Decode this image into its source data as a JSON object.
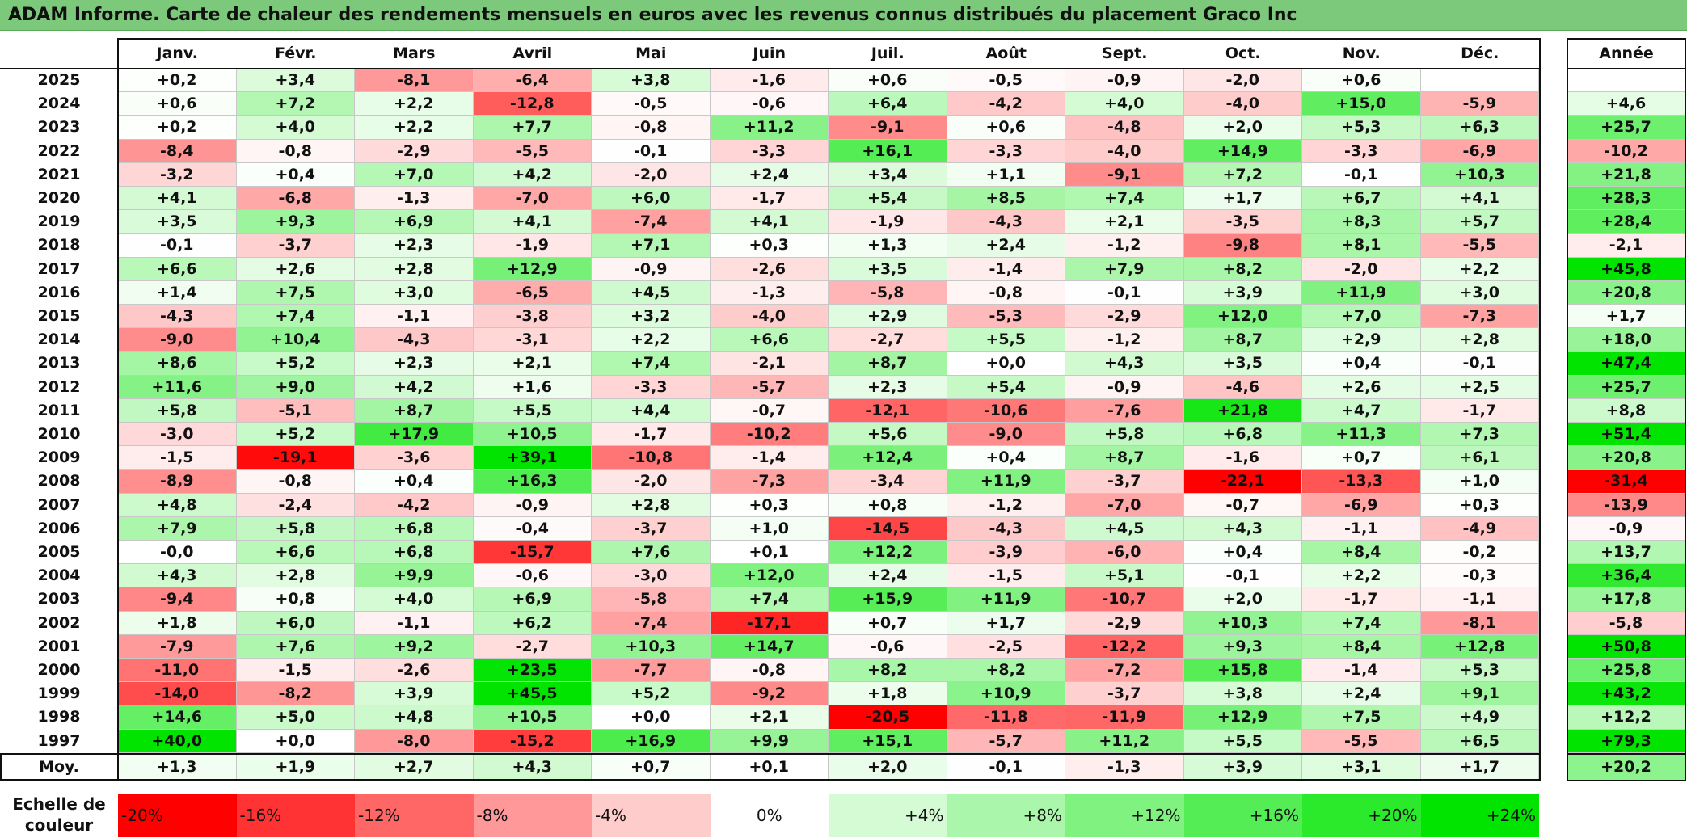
{
  "title": "ADAM Informe. Carte de chaleur des rendements mensuels en euros avec les revenus connus distribués du placement Graco Inc",
  "months": [
    "Janv.",
    "Févr.",
    "Mars",
    "Avril",
    "Mai",
    "Juin",
    "Juil.",
    "Août",
    "Sept.",
    "Oct.",
    "Nov.",
    "Déc."
  ],
  "year_header": "Année",
  "avg_label": "Moy.",
  "scale_label_line1": "Echelle de",
  "scale_label_line2": "couleur",
  "colors": {
    "neutral": "#ffffff",
    "positive_max": "#00e400",
    "negative_max": "#ff0000",
    "title_bg": "#7dc97b"
  },
  "chart_data": {
    "type": "heatmap",
    "title": "ADAM Informe. Carte de chaleur des rendements mensuels en euros avec les revenus connus distribués du placement Graco Inc",
    "color_scale_range": [
      -20,
      24
    ],
    "rows": [
      {
        "year": "2025",
        "values": [
          "+0,2",
          "+3,4",
          "-8,1",
          "-6,4",
          "+3,8",
          "-1,6",
          "+0,6",
          "-0,5",
          "-0,9",
          "-2,0",
          "+0,6",
          ""
        ],
        "annual": ""
      },
      {
        "year": "2024",
        "values": [
          "+0,6",
          "+7,2",
          "+2,2",
          "-12,8",
          "-0,5",
          "-0,6",
          "+6,4",
          "-4,2",
          "+4,0",
          "-4,0",
          "+15,0",
          "-5,9"
        ],
        "annual": "+4,6"
      },
      {
        "year": "2023",
        "values": [
          "+0,2",
          "+4,0",
          "+2,2",
          "+7,7",
          "-0,8",
          "+11,2",
          "-9,1",
          "+0,6",
          "-4,8",
          "+2,0",
          "+5,3",
          "+6,3"
        ],
        "annual": "+25,7"
      },
      {
        "year": "2022",
        "values": [
          "-8,4",
          "-0,8",
          "-2,9",
          "-5,5",
          "-0,1",
          "-3,3",
          "+16,1",
          "-3,3",
          "-4,0",
          "+14,9",
          "-3,3",
          "-6,9"
        ],
        "annual": "-10,2"
      },
      {
        "year": "2021",
        "values": [
          "-3,2",
          "+0,4",
          "+7,0",
          "+4,2",
          "-2,0",
          "+2,4",
          "+3,4",
          "+1,1",
          "-9,1",
          "+7,2",
          "-0,1",
          "+10,3"
        ],
        "annual": "+21,8"
      },
      {
        "year": "2020",
        "values": [
          "+4,1",
          "-6,8",
          "-1,3",
          "-7,0",
          "+6,0",
          "-1,7",
          "+5,4",
          "+8,5",
          "+7,4",
          "+1,7",
          "+6,7",
          "+4,1"
        ],
        "annual": "+28,3"
      },
      {
        "year": "2019",
        "values": [
          "+3,5",
          "+9,3",
          "+6,9",
          "+4,1",
          "-7,4",
          "+4,1",
          "-1,9",
          "-4,3",
          "+2,1",
          "-3,5",
          "+8,3",
          "+5,7"
        ],
        "annual": "+28,4"
      },
      {
        "year": "2018",
        "values": [
          "-0,1",
          "-3,7",
          "+2,3",
          "-1,9",
          "+7,1",
          "+0,3",
          "+1,3",
          "+2,4",
          "-1,2",
          "-9,8",
          "+8,1",
          "-5,5"
        ],
        "annual": "-2,1"
      },
      {
        "year": "2017",
        "values": [
          "+6,6",
          "+2,6",
          "+2,8",
          "+12,9",
          "-0,9",
          "-2,6",
          "+3,5",
          "-1,4",
          "+7,9",
          "+8,2",
          "-2,0",
          "+2,2"
        ],
        "annual": "+45,8"
      },
      {
        "year": "2016",
        "values": [
          "+1,4",
          "+7,5",
          "+3,0",
          "-6,5",
          "+4,5",
          "-1,3",
          "-5,8",
          "-0,8",
          "-0,1",
          "+3,9",
          "+11,9",
          "+3,0"
        ],
        "annual": "+20,8"
      },
      {
        "year": "2015",
        "values": [
          "-4,3",
          "+7,4",
          "-1,1",
          "-3,8",
          "+3,2",
          "-4,0",
          "+2,9",
          "-5,3",
          "-2,9",
          "+12,0",
          "+7,0",
          "-7,3"
        ],
        "annual": "+1,7"
      },
      {
        "year": "2014",
        "values": [
          "-9,0",
          "+10,4",
          "-4,3",
          "-3,1",
          "+2,2",
          "+6,6",
          "-2,7",
          "+5,5",
          "-1,2",
          "+8,7",
          "+2,9",
          "+2,8"
        ],
        "annual": "+18,0"
      },
      {
        "year": "2013",
        "values": [
          "+8,6",
          "+5,2",
          "+2,3",
          "+2,1",
          "+7,4",
          "-2,1",
          "+8,7",
          "+0,0",
          "+4,3",
          "+3,5",
          "+0,4",
          "-0,1"
        ],
        "annual": "+47,4"
      },
      {
        "year": "2012",
        "values": [
          "+11,6",
          "+9,0",
          "+4,2",
          "+1,6",
          "-3,3",
          "-5,7",
          "+2,3",
          "+5,4",
          "-0,9",
          "-4,6",
          "+2,6",
          "+2,5"
        ],
        "annual": "+25,7"
      },
      {
        "year": "2011",
        "values": [
          "+5,8",
          "-5,1",
          "+8,7",
          "+5,5",
          "+4,4",
          "-0,7",
          "-12,1",
          "-10,6",
          "-7,6",
          "+21,8",
          "+4,7",
          "-1,7"
        ],
        "annual": "+8,8"
      },
      {
        "year": "2010",
        "values": [
          "-3,0",
          "+5,2",
          "+17,9",
          "+10,5",
          "-1,7",
          "-10,2",
          "+5,6",
          "-9,0",
          "+5,8",
          "+6,8",
          "+11,3",
          "+7,3"
        ],
        "annual": "+51,4"
      },
      {
        "year": "2009",
        "values": [
          "-1,5",
          "-19,1",
          "-3,6",
          "+39,1",
          "-10,8",
          "-1,4",
          "+12,4",
          "+0,4",
          "+8,7",
          "-1,6",
          "+0,7",
          "+6,1"
        ],
        "annual": "+20,8"
      },
      {
        "year": "2008",
        "values": [
          "-8,9",
          "-0,8",
          "+0,4",
          "+16,3",
          "-2,0",
          "-7,3",
          "-3,4",
          "+11,9",
          "-3,7",
          "-22,1",
          "-13,3",
          "+1,0"
        ],
        "annual": "-31,4"
      },
      {
        "year": "2007",
        "values": [
          "+4,8",
          "-2,4",
          "-4,2",
          "-0,9",
          "+2,8",
          "+0,3",
          "+0,8",
          "-1,2",
          "-7,0",
          "-0,7",
          "-6,9",
          "+0,3"
        ],
        "annual": "-13,9"
      },
      {
        "year": "2006",
        "values": [
          "+7,9",
          "+5,8",
          "+6,8",
          "-0,4",
          "-3,7",
          "+1,0",
          "-14,5",
          "-4,3",
          "+4,5",
          "+4,3",
          "-1,1",
          "-4,9"
        ],
        "annual": "-0,9"
      },
      {
        "year": "2005",
        "values": [
          "-0,0",
          "+6,6",
          "+6,8",
          "-15,7",
          "+7,6",
          "+0,1",
          "+12,2",
          "-3,9",
          "-6,0",
          "+0,4",
          "+8,4",
          "-0,2"
        ],
        "annual": "+13,7"
      },
      {
        "year": "2004",
        "values": [
          "+4,3",
          "+2,8",
          "+9,9",
          "-0,6",
          "-3,0",
          "+12,0",
          "+2,4",
          "-1,5",
          "+5,1",
          "-0,1",
          "+2,2",
          "-0,3"
        ],
        "annual": "+36,4"
      },
      {
        "year": "2003",
        "values": [
          "-9,4",
          "+0,8",
          "+4,0",
          "+6,9",
          "-5,8",
          "+7,4",
          "+15,9",
          "+11,9",
          "-10,7",
          "+2,0",
          "-1,7",
          "-1,1"
        ],
        "annual": "+17,8"
      },
      {
        "year": "2002",
        "values": [
          "+1,8",
          "+6,0",
          "-1,1",
          "+6,2",
          "-7,4",
          "-17,1",
          "+0,7",
          "+1,7",
          "-2,9",
          "+10,3",
          "+7,4",
          "-8,1"
        ],
        "annual": "-5,8"
      },
      {
        "year": "2001",
        "values": [
          "-7,9",
          "+7,6",
          "+9,2",
          "-2,7",
          "+10,3",
          "+14,7",
          "-0,6",
          "-2,5",
          "-12,2",
          "+9,3",
          "+8,4",
          "+12,8"
        ],
        "annual": "+50,8"
      },
      {
        "year": "2000",
        "values": [
          "-11,0",
          "-1,5",
          "-2,6",
          "+23,5",
          "-7,7",
          "-0,8",
          "+8,2",
          "+8,2",
          "-7,2",
          "+15,8",
          "-1,4",
          "+5,3"
        ],
        "annual": "+25,8"
      },
      {
        "year": "1999",
        "values": [
          "-14,0",
          "-8,2",
          "+3,9",
          "+45,5",
          "+5,2",
          "-9,2",
          "+1,8",
          "+10,9",
          "-3,7",
          "+3,8",
          "+2,4",
          "+9,1"
        ],
        "annual": "+43,2"
      },
      {
        "year": "1998",
        "values": [
          "+14,6",
          "+5,0",
          "+4,8",
          "+10,5",
          "+0,0",
          "+2,1",
          "-20,5",
          "-11,8",
          "-11,9",
          "+12,9",
          "+7,5",
          "+4,9"
        ],
        "annual": "+12,2"
      },
      {
        "year": "1997",
        "values": [
          "+40,0",
          "+0,0",
          "-8,0",
          "-15,2",
          "+16,9",
          "+9,9",
          "+15,1",
          "-5,7",
          "+11,2",
          "+5,5",
          "-5,5",
          "+6,5"
        ],
        "annual": "+79,3"
      }
    ],
    "averages": [
      "+1,3",
      "+1,9",
      "+2,7",
      "+4,3",
      "+0,7",
      "+0,1",
      "+2,0",
      "-0,1",
      "-1,3",
      "+3,9",
      "+3,1",
      "+1,7"
    ],
    "average_annual": "+20,2",
    "scale": [
      {
        "label": "-20%",
        "value": -20,
        "align": "left"
      },
      {
        "label": "-16%",
        "value": -16,
        "align": "left"
      },
      {
        "label": "-12%",
        "value": -12,
        "align": "left"
      },
      {
        "label": "-8%",
        "value": -8,
        "align": "left"
      },
      {
        "label": "-4%",
        "value": -4,
        "align": "left"
      },
      {
        "label": "0%",
        "value": 0,
        "align": "center"
      },
      {
        "label": "+4%",
        "value": 4,
        "align": "right"
      },
      {
        "label": "+8%",
        "value": 8,
        "align": "right"
      },
      {
        "label": "+12%",
        "value": 12,
        "align": "right"
      },
      {
        "label": "+16%",
        "value": 16,
        "align": "right"
      },
      {
        "label": "+20%",
        "value": 20,
        "align": "right"
      },
      {
        "label": "+24%",
        "value": 24,
        "align": "right"
      }
    ]
  }
}
